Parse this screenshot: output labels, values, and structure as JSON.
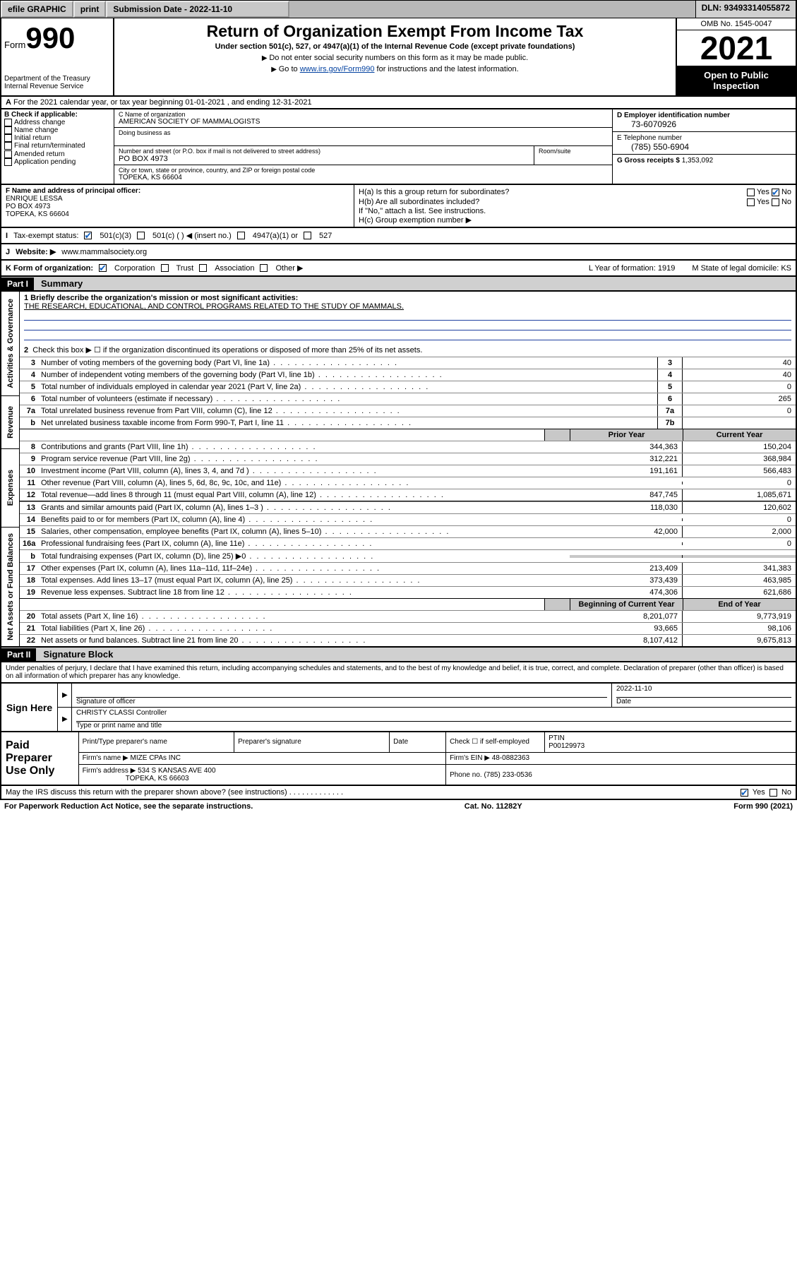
{
  "efile": {
    "graphic": "efile GRAPHIC",
    "print": "print",
    "sub_label": "Submission Date - 2022-11-10",
    "dln": "DLN: 93493314055872"
  },
  "hdr": {
    "form_word": "Form",
    "form_num": "990",
    "dept": "Department of the Treasury\nInternal Revenue Service",
    "title": "Return of Organization Exempt From Income Tax",
    "sub": "Under section 501(c), 527, or 4947(a)(1) of the Internal Revenue Code (except private foundations)",
    "note1": "Do not enter social security numbers on this form as it may be made public.",
    "note2_pre": "Go to ",
    "note2_link": "www.irs.gov/Form990",
    "note2_post": " for instructions and the latest information.",
    "omb": "OMB No. 1545-0047",
    "year": "2021",
    "openpub": "Open to Public Inspection"
  },
  "rowA": {
    "text": "For the 2021 calendar year, or tax year beginning 01-01-2021   , and ending 12-31-2021",
    "prefix": "A"
  },
  "B": {
    "label": "B Check if applicable:",
    "items": [
      "Address change",
      "Name change",
      "Initial return",
      "Final return/terminated",
      "Amended return",
      "Application pending"
    ]
  },
  "C": {
    "name_lab": "C Name of organization",
    "name": "AMERICAN SOCIETY OF MAMMALOGISTS",
    "dba_lab": "Doing business as",
    "addr_lab": "Number and street (or P.O. box if mail is not delivered to street address)",
    "suite_lab": "Room/suite",
    "addr": "PO BOX 4973",
    "city_lab": "City or town, state or province, country, and ZIP or foreign postal code",
    "city": "TOPEKA, KS  66604"
  },
  "D": {
    "lab": "D Employer identification number",
    "val": "73-6070926"
  },
  "E": {
    "lab": "E Telephone number",
    "val": "(785) 550-6904"
  },
  "G": {
    "lab": "G Gross receipts $",
    "val": "1,353,092"
  },
  "F": {
    "lab": "F  Name and address of principal officer:",
    "name": "ENRIQUE LESSA",
    "addr1": "PO BOX 4973",
    "addr2": "TOPEKA, KS  66604"
  },
  "H": {
    "a": "H(a)  Is this a group return for subordinates?",
    "b": "H(b)  Are all subordinates included?",
    "bnote": "If \"No,\" attach a list. See instructions.",
    "c": "H(c)  Group exemption number ▶",
    "yes": "Yes",
    "no": "No"
  },
  "I": {
    "lab": "Tax-exempt status:",
    "o1": "501(c)(3)",
    "o2": "501(c) (  ) ◀ (insert no.)",
    "o3": "4947(a)(1) or",
    "o4": "527"
  },
  "J": {
    "lab": "Website: ▶",
    "val": "www.mammalsociety.org"
  },
  "K": {
    "lab": "K Form of organization:",
    "o1": "Corporation",
    "o2": "Trust",
    "o3": "Association",
    "o4": "Other ▶",
    "L": "L Year of formation: 1919",
    "M": "M State of legal domicile: KS"
  },
  "partI": {
    "hdr": "Part I",
    "title": "Summary",
    "side_labels": [
      "Activities & Governance",
      "Revenue",
      "Expenses",
      "Net Assets or Fund Balances"
    ],
    "line1_lab": "1  Briefly describe the organization's mission or most significant activities:",
    "line1_val": "THE RESEARCH, EDUCATIONAL, AND CONTROL PROGRAMS RELATED TO THE STUDY OF MAMMALS.",
    "line2": "Check this box ▶ ☐  if the organization discontinued its operations or disposed of more than 25% of its net assets.",
    "gov_rows": [
      {
        "n": "3",
        "t": "Number of voting members of the governing body (Part VI, line 1a)",
        "box": "3",
        "v": "40"
      },
      {
        "n": "4",
        "t": "Number of independent voting members of the governing body (Part VI, line 1b)",
        "box": "4",
        "v": "40"
      },
      {
        "n": "5",
        "t": "Total number of individuals employed in calendar year 2021 (Part V, line 2a)",
        "box": "5",
        "v": "0"
      },
      {
        "n": "6",
        "t": "Total number of volunteers (estimate if necessary)",
        "box": "6",
        "v": "265"
      },
      {
        "n": "7a",
        "t": "Total unrelated business revenue from Part VIII, column (C), line 12",
        "box": "7a",
        "v": "0"
      },
      {
        "n": "b",
        "t": "Net unrelated business taxable income from Form 990-T, Part I, line 11",
        "box": "7b",
        "v": ""
      }
    ],
    "col_prior": "Prior Year",
    "col_curr": "Current Year",
    "rev_rows": [
      {
        "n": "8",
        "t": "Contributions and grants (Part VIII, line 1h)",
        "p": "344,363",
        "c": "150,204"
      },
      {
        "n": "9",
        "t": "Program service revenue (Part VIII, line 2g)",
        "p": "312,221",
        "c": "368,984"
      },
      {
        "n": "10",
        "t": "Investment income (Part VIII, column (A), lines 3, 4, and 7d )",
        "p": "191,161",
        "c": "566,483"
      },
      {
        "n": "11",
        "t": "Other revenue (Part VIII, column (A), lines 5, 6d, 8c, 9c, 10c, and 11e)",
        "p": "",
        "c": "0"
      },
      {
        "n": "12",
        "t": "Total revenue—add lines 8 through 11 (must equal Part VIII, column (A), line 12)",
        "p": "847,745",
        "c": "1,085,671"
      }
    ],
    "exp_rows": [
      {
        "n": "13",
        "t": "Grants and similar amounts paid (Part IX, column (A), lines 1–3 )",
        "p": "118,030",
        "c": "120,602"
      },
      {
        "n": "14",
        "t": "Benefits paid to or for members (Part IX, column (A), line 4)",
        "p": "",
        "c": "0"
      },
      {
        "n": "15",
        "t": "Salaries, other compensation, employee benefits (Part IX, column (A), lines 5–10)",
        "p": "42,000",
        "c": "2,000"
      },
      {
        "n": "16a",
        "t": "Professional fundraising fees (Part IX, column (A), line 11e)",
        "p": "",
        "c": "0"
      },
      {
        "n": "b",
        "t": "Total fundraising expenses (Part IX, column (D), line 25) ▶0",
        "p": "shade",
        "c": "shade"
      },
      {
        "n": "17",
        "t": "Other expenses (Part IX, column (A), lines 11a–11d, 11f–24e)",
        "p": "213,409",
        "c": "341,383"
      },
      {
        "n": "18",
        "t": "Total expenses. Add lines 13–17 (must equal Part IX, column (A), line 25)",
        "p": "373,439",
        "c": "463,985"
      },
      {
        "n": "19",
        "t": "Revenue less expenses. Subtract line 18 from line 12",
        "p": "474,306",
        "c": "621,686"
      }
    ],
    "col_beg": "Beginning of Current Year",
    "col_end": "End of Year",
    "net_rows": [
      {
        "n": "20",
        "t": "Total assets (Part X, line 16)",
        "p": "8,201,077",
        "c": "9,773,919"
      },
      {
        "n": "21",
        "t": "Total liabilities (Part X, line 26)",
        "p": "93,665",
        "c": "98,106"
      },
      {
        "n": "22",
        "t": "Net assets or fund balances. Subtract line 21 from line 20",
        "p": "8,107,412",
        "c": "9,675,813"
      }
    ]
  },
  "partII": {
    "hdr": "Part II",
    "title": "Signature Block",
    "intro": "Under penalties of perjury, I declare that I have examined this return, including accompanying schedules and statements, and to the best of my knowledge and belief, it is true, correct, and complete. Declaration of preparer (other than officer) is based on all information of which preparer has any knowledge.",
    "sign_here": "Sign Here",
    "sig_of_officer": "Signature of officer",
    "date_lab": "Date",
    "date": "2022-11-10",
    "name_title": "CHRISTY CLASSI Controller",
    "name_title_lab": "Type or print name and title",
    "paid": "Paid Preparer Use Only",
    "h1": "Print/Type preparer's name",
    "h2": "Preparer's signature",
    "h3": "Date",
    "h4_a": "Check ☐ if self-employed",
    "h4_b": "PTIN",
    "ptin": "P00129973",
    "firm_name_lab": "Firm's name   ▶",
    "firm_name": "MIZE CPAs INC",
    "firm_ein_lab": "Firm's EIN ▶",
    "firm_ein": "48-0882363",
    "firm_addr_lab": "Firm's address ▶",
    "firm_addr1": "534 S KANSAS AVE 400",
    "firm_addr2": "TOPEKA, KS  66603",
    "phone_lab": "Phone no.",
    "phone": "(785) 233-0536",
    "discuss": "May the IRS discuss this return with the preparer shown above? (see instructions)",
    "yes": "Yes",
    "no": "No"
  },
  "footer": {
    "left": "For Paperwork Reduction Act Notice, see the separate instructions.",
    "mid": "Cat. No. 11282Y",
    "right": "Form 990 (2021)"
  }
}
